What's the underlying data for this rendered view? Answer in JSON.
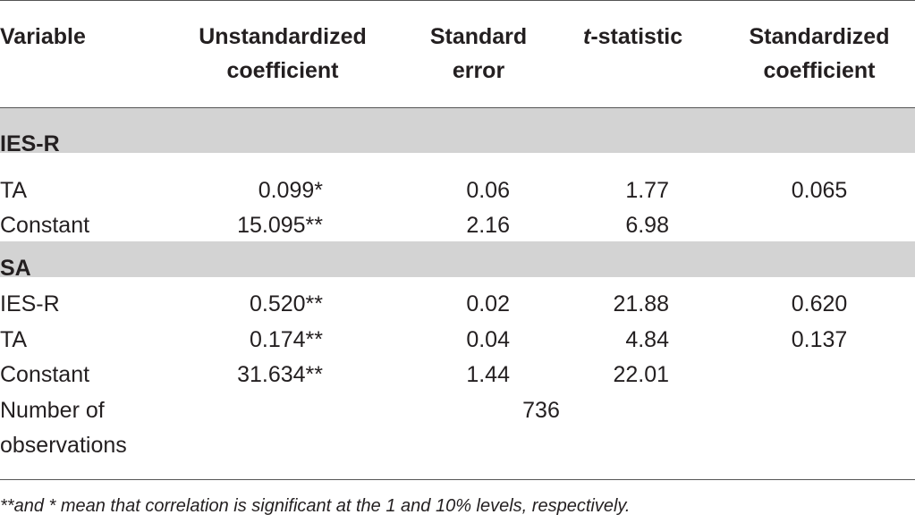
{
  "header": {
    "variable": "Variable",
    "unstd_line1": "Unstandardized",
    "unstd_line2": "coefficient",
    "se_line1": "Standard",
    "se_line2": "error",
    "t_italic": "t",
    "t_rest": "-statistic",
    "std_line1": "Standardized",
    "std_line2": "coefficient"
  },
  "sections": [
    {
      "title": "IES-R",
      "rows": [
        {
          "variable": "TA",
          "unstd": "0.099*",
          "se": "0.06",
          "t": "1.77",
          "std": "0.065"
        },
        {
          "variable": "Constant",
          "unstd": "15.095**",
          "se": "2.16",
          "t": "6.98",
          "std": ""
        }
      ]
    },
    {
      "title": "SA",
      "rows": [
        {
          "variable": "IES-R",
          "unstd": "0.520**",
          "se": "0.02",
          "t": "21.88",
          "std": "0.620"
        },
        {
          "variable": "TA",
          "unstd": "0.174**",
          "se": "0.04",
          "t": "4.84",
          "std": "0.137"
        },
        {
          "variable": "Constant",
          "unstd": "31.634**",
          "se": "1.44",
          "t": "22.01",
          "std": ""
        }
      ]
    }
  ],
  "observations": {
    "label_line1": "Number of",
    "label_line2": "observations",
    "value": "736"
  },
  "footnote": "**and * mean that correlation is significant at the 1 and 10% levels, respectively."
}
